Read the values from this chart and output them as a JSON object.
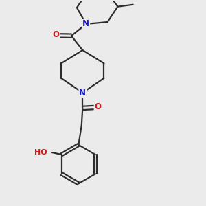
{
  "bg_color": "#ebebeb",
  "bond_color": "#2d2d2d",
  "bond_width": 1.6,
  "atom_colors": {
    "N": "#1a1acc",
    "O": "#cc1a1a",
    "C": "#2d2d2d"
  },
  "font_size_atom": 8.5
}
